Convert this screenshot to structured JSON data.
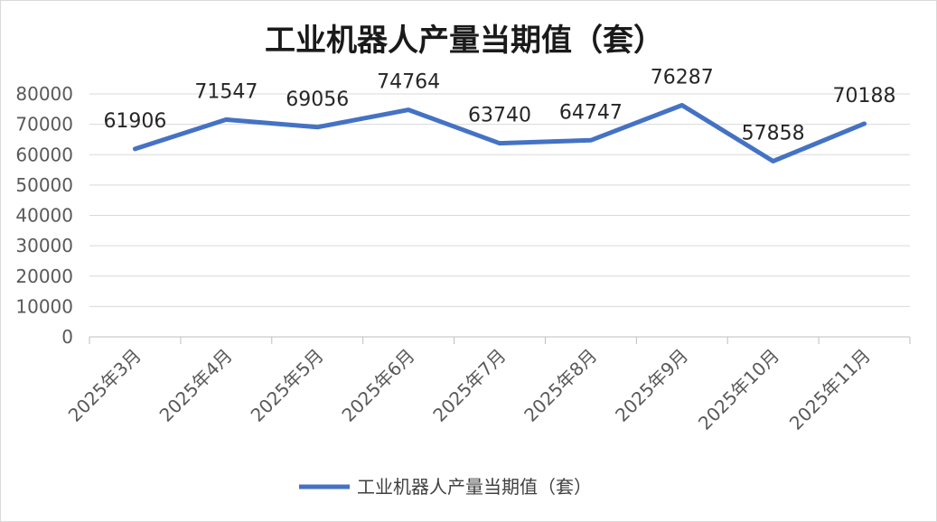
{
  "chart_data": {
    "type": "line",
    "title": "工业机器人产量当期值（套）",
    "categories": [
      "2025年3月",
      "2025年4月",
      "2025年5月",
      "2025年6月",
      "2025年7月",
      "2025年8月",
      "2025年9月",
      "2025年10月",
      "2025年11月"
    ],
    "series": [
      {
        "name": "工业机器人产量当期值（套）",
        "values": [
          61906,
          71547,
          69056,
          74764,
          63740,
          64747,
          76287,
          57858,
          70188
        ],
        "color": "#4472C4"
      }
    ],
    "ylim": [
      0,
      80000
    ],
    "yticks": [
      "0",
      "10000",
      "20000",
      "30000",
      "40000",
      "50000",
      "60000",
      "70000",
      "80000"
    ],
    "grid": true,
    "legend_position": "bottom",
    "data_labels": true,
    "xlabel": "",
    "ylabel": ""
  }
}
